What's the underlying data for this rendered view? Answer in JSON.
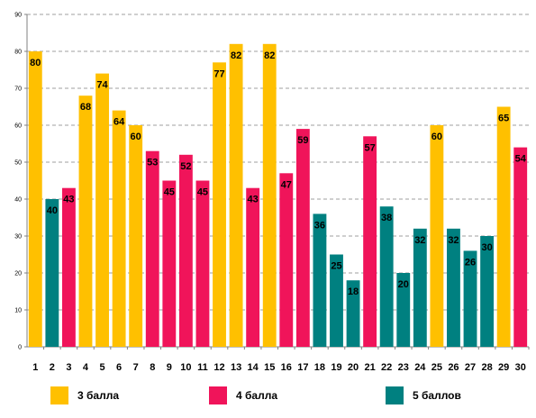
{
  "chart_data": {
    "type": "bar",
    "title": "",
    "xlabel": "",
    "ylabel": "",
    "ylim": [
      0,
      90
    ],
    "yticks": [
      0,
      10,
      20,
      30,
      40,
      50,
      60,
      70,
      80,
      90
    ],
    "grid": true,
    "legend_position": "bottom",
    "categories": [
      "1",
      "2",
      "3",
      "4",
      "5",
      "6",
      "7",
      "8",
      "9",
      "10",
      "11",
      "12",
      "13",
      "14",
      "15",
      "16",
      "17",
      "18",
      "19",
      "20",
      "21",
      "22",
      "23",
      "24",
      "25",
      "26",
      "27",
      "28",
      "29",
      "30"
    ],
    "values": [
      80,
      40,
      43,
      68,
      74,
      64,
      60,
      53,
      45,
      52,
      45,
      77,
      82,
      43,
      82,
      47,
      59,
      36,
      25,
      18,
      57,
      38,
      20,
      32,
      60,
      32,
      26,
      30,
      65,
      54
    ],
    "groups": [
      "g3",
      "g5",
      "g4",
      "g3",
      "g3",
      "g3",
      "g3",
      "g4",
      "g4",
      "g4",
      "g4",
      "g3",
      "g3",
      "g4",
      "g3",
      "g4",
      "g4",
      "g5",
      "g5",
      "g5",
      "g4",
      "g5",
      "g5",
      "g5",
      "g3",
      "g5",
      "g5",
      "g5",
      "g3",
      "g4"
    ],
    "series": [
      {
        "key": "g3",
        "name": "3 балла",
        "color": "#FFC000"
      },
      {
        "key": "g4",
        "name": "4 балла",
        "color": "#F0145A"
      },
      {
        "key": "g5",
        "name": "5 баллов",
        "color": "#008080"
      }
    ]
  }
}
